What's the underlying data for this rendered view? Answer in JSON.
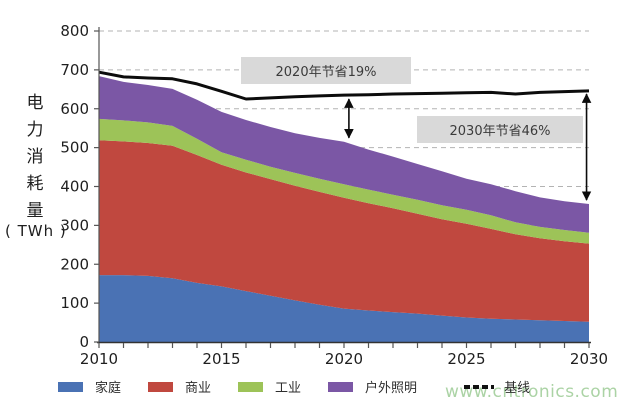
{
  "watermark": {
    "text": "www.cntronics.com"
  },
  "annotations": [
    {
      "text": "2020年节省19%",
      "arrow_year": 2020.2,
      "arrow_from": 630,
      "arrow_to": 520
    },
    {
      "text": "2030年节省46%",
      "arrow_year": 2029.9,
      "arrow_from": 643,
      "arrow_to": 360
    }
  ],
  "chart_data": {
    "type": "area",
    "stacked": true,
    "title": "",
    "ylabel": "电力消耗量",
    "ylabel_unit": "( TWh )",
    "ylim": [
      0,
      800
    ],
    "y_ticks": [
      0,
      100,
      200,
      300,
      400,
      500,
      600,
      700,
      800
    ],
    "x": [
      2010,
      2011,
      2012,
      2013,
      2014,
      2015,
      2016,
      2017,
      2018,
      2019,
      2020,
      2021,
      2022,
      2023,
      2024,
      2025,
      2026,
      2027,
      2028,
      2029,
      2030
    ],
    "x_tick_labels": [
      2010,
      2015,
      2020,
      2025,
      2030
    ],
    "grid": "dashed-horizontal",
    "legend_position": "bottom",
    "series": [
      {
        "key": "household",
        "name": "家庭",
        "color": "#4a72b4",
        "values": [
          172,
          172,
          170,
          164,
          152,
          143,
          131,
          119,
          107,
          96,
          86,
          81,
          77,
          73,
          68,
          63,
          60,
          58,
          56,
          54,
          52
        ]
      },
      {
        "key": "commercial",
        "name": "商业",
        "color": "#c0483f",
        "values": [
          347,
          344,
          342,
          341,
          329,
          313,
          305,
          300,
          295,
          290,
          285,
          276,
          267,
          257,
          248,
          241,
          231,
          219,
          211,
          205,
          201
        ]
      },
      {
        "key": "industry",
        "name": "工业",
        "color": "#9dc358",
        "values": [
          55,
          54,
          53,
          51,
          42,
          32,
          33,
          32,
          33,
          34,
          35,
          35,
          35,
          36,
          36,
          36,
          35,
          31,
          29,
          29,
          28
        ]
      },
      {
        "key": "outdoor-lighting",
        "name": "户外照明",
        "color": "#7b57a5",
        "values": [
          110,
          99,
          96,
          95,
          100,
          104,
          102,
          102,
          102,
          105,
          109,
          103,
          98,
          92,
          87,
          80,
          80,
          80,
          76,
          74,
          74
        ]
      }
    ],
    "baseline": {
      "key": "baseline",
      "name": "基线",
      "color": "#0c0c0c",
      "values": [
        694,
        682,
        679,
        677,
        664,
        645,
        625,
        628,
        631,
        633,
        635,
        636,
        638,
        639,
        640,
        641,
        642,
        638,
        642,
        644,
        646
      ]
    }
  }
}
